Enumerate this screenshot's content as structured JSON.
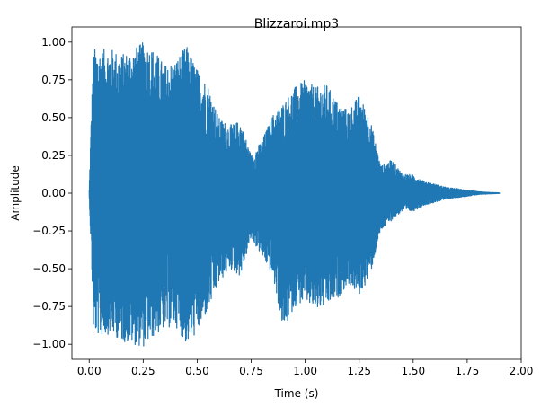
{
  "chart_data": {
    "type": "line",
    "title": "Blizzaroi.mp3",
    "xlabel": "Time (s)",
    "ylabel": "Amplitude",
    "xlim": [
      -0.08,
      2.0
    ],
    "ylim": [
      -1.1,
      1.1
    ],
    "x_ticks": [
      0.0,
      0.25,
      0.5,
      0.75,
      1.0,
      1.25,
      1.5,
      1.75,
      2.0
    ],
    "x_tick_labels": [
      "0.00",
      "0.25",
      "0.50",
      "0.75",
      "1.00",
      "1.25",
      "1.50",
      "1.75",
      "2.00"
    ],
    "y_ticks": [
      -1.0,
      -0.75,
      -0.5,
      -0.25,
      0.0,
      0.25,
      0.5,
      0.75,
      1.0
    ],
    "y_tick_labels": [
      "−1.00",
      "−0.75",
      "−0.50",
      "−0.25",
      "0.00",
      "0.25",
      "0.50",
      "0.75",
      "1.00"
    ],
    "grid": false,
    "color": "#1f77b4",
    "series": [
      {
        "x": [
          0.0,
          0.01,
          0.02,
          0.05,
          0.1,
          0.15,
          0.2,
          0.25,
          0.3,
          0.35,
          0.4,
          0.45,
          0.5,
          0.55,
          0.6,
          0.65,
          0.7,
          0.75,
          0.8,
          0.85,
          0.9,
          0.95,
          1.0,
          1.05,
          1.1,
          1.15,
          1.2,
          1.25,
          1.3,
          1.35,
          1.4,
          1.45,
          1.5,
          1.55,
          1.6,
          1.65,
          1.7,
          1.75,
          1.8,
          1.85,
          1.9
        ],
        "upper": [
          0.02,
          0.55,
          0.96,
          0.95,
          0.96,
          0.92,
          0.95,
          1.0,
          0.95,
          0.85,
          0.88,
          0.98,
          0.82,
          0.72,
          0.5,
          0.45,
          0.48,
          0.25,
          0.35,
          0.52,
          0.6,
          0.7,
          0.75,
          0.7,
          0.72,
          0.6,
          0.55,
          0.65,
          0.5,
          0.18,
          0.22,
          0.13,
          0.12,
          0.08,
          0.06,
          0.04,
          0.03,
          0.02,
          0.01,
          0.005,
          0.002
        ],
        "lower": [
          -0.02,
          -0.42,
          -0.92,
          -0.95,
          -0.93,
          -0.98,
          -1.0,
          -1.02,
          -0.95,
          -0.9,
          -0.88,
          -1.0,
          -0.93,
          -0.78,
          -0.6,
          -0.5,
          -0.55,
          -0.3,
          -0.42,
          -0.55,
          -0.92,
          -0.75,
          -0.72,
          -0.78,
          -0.75,
          -0.7,
          -0.6,
          -0.68,
          -0.55,
          -0.25,
          -0.18,
          -0.12,
          -0.12,
          -0.08,
          -0.06,
          -0.04,
          -0.03,
          -0.02,
          -0.01,
          -0.005,
          -0.002
        ]
      }
    ]
  }
}
